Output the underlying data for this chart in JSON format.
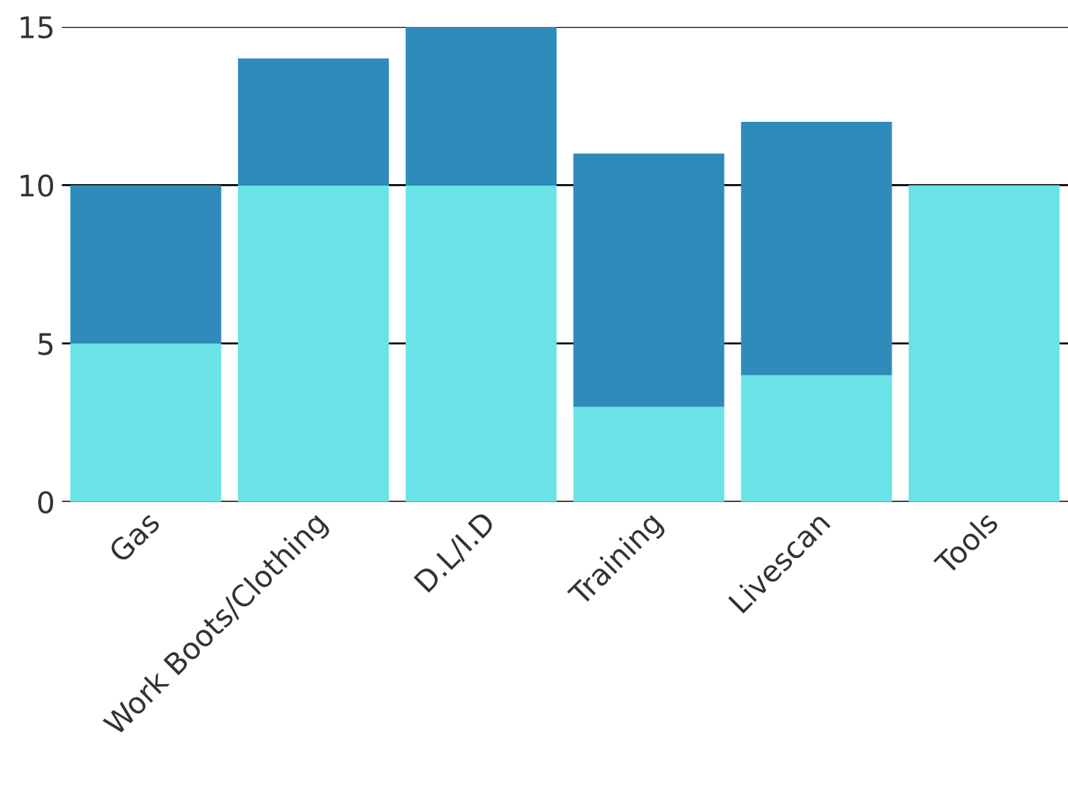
{
  "chart_data": {
    "type": "bar",
    "stacked": true,
    "categories": [
      "Gas",
      "Work Boots/Clothing",
      "D.L/I.D",
      "Training",
      "Livescan",
      "Tools"
    ],
    "series": [
      {
        "color": "#6ae3e6",
        "values": [
          5,
          10,
          10,
          3,
          4,
          10
        ]
      },
      {
        "color": "#2e8bba",
        "values": [
          5,
          4,
          5,
          8,
          8,
          null
        ]
      }
    ],
    "ylim": [
      0,
      15
    ],
    "yticks": [
      0,
      5,
      10,
      15
    ],
    "grid": "y"
  }
}
